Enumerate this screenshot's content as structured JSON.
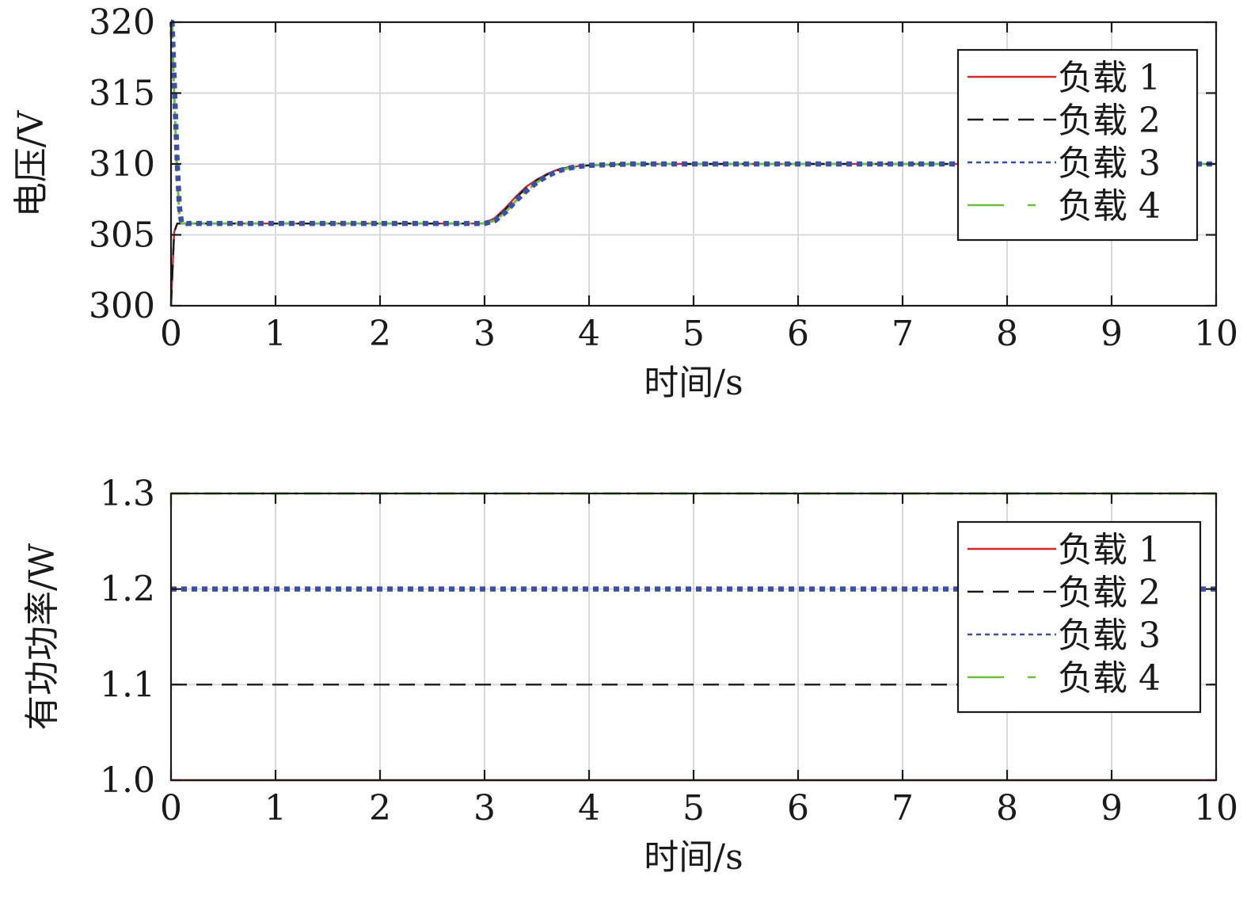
{
  "chart_data": [
    {
      "type": "line",
      "xlabel": "时间/s",
      "ylabel": "电压/V",
      "xlim": [
        0,
        10
      ],
      "ylim": [
        300,
        320
      ],
      "xticks": [
        "0",
        "1",
        "2",
        "3",
        "4",
        "5",
        "6",
        "7",
        "8",
        "9",
        "10"
      ],
      "yticks": [
        "300",
        "305",
        "310",
        "315",
        "320"
      ],
      "grid": true,
      "legend_position": "top-right",
      "series": [
        {
          "name": "负载 1",
          "color": "#d62728",
          "style": "solid",
          "x": [
            0,
            0.03,
            0.06,
            0.1,
            0.15,
            0.5,
            1,
            2,
            3,
            3.1,
            3.2,
            3.3,
            3.4,
            3.5,
            3.6,
            3.7,
            3.8,
            3.9,
            4,
            4.2,
            4.4,
            4.6,
            5,
            6,
            7,
            8,
            9,
            10
          ],
          "y": [
            300,
            305.2,
            305.8,
            305.8,
            305.8,
            305.8,
            305.8,
            305.8,
            305.8,
            306.2,
            306.9,
            307.7,
            308.4,
            308.9,
            309.3,
            309.6,
            309.75,
            309.85,
            309.9,
            309.95,
            310,
            310,
            310,
            310,
            310,
            310,
            310,
            310
          ]
        },
        {
          "name": "负载 2",
          "color": "#1a1a1a",
          "style": "dashed",
          "x": [
            0,
            0.03,
            0.06,
            0.1,
            0.15,
            0.5,
            1,
            2,
            3,
            3.1,
            3.2,
            3.3,
            3.4,
            3.5,
            3.6,
            3.7,
            3.8,
            3.9,
            4,
            4.2,
            4.4,
            4.6,
            5,
            6,
            7,
            8,
            9,
            10
          ],
          "y": [
            300,
            305.2,
            305.8,
            305.8,
            305.8,
            305.8,
            305.8,
            305.8,
            305.8,
            306.1,
            306.8,
            307.6,
            308.3,
            308.85,
            309.25,
            309.55,
            309.75,
            309.85,
            309.9,
            309.95,
            310,
            310,
            310,
            310,
            310,
            310,
            310,
            310
          ]
        },
        {
          "name": "负载 3",
          "color": "#3a4fa8",
          "style": "dotted",
          "x": [
            0,
            0.01,
            0.02,
            0.04,
            0.06,
            0.08,
            0.1,
            0.15,
            0.5,
            1,
            2,
            3,
            3.1,
            3.2,
            3.3,
            3.4,
            3.5,
            3.6,
            3.7,
            3.8,
            3.9,
            4,
            4.2,
            4.4,
            4.6,
            5,
            6,
            7,
            8,
            9,
            10
          ],
          "y": [
            320,
            320,
            318,
            314,
            310,
            307,
            305.9,
            305.8,
            305.8,
            305.8,
            305.8,
            305.8,
            306,
            306.6,
            307.4,
            308.1,
            308.7,
            309.15,
            309.5,
            309.7,
            309.82,
            309.9,
            309.95,
            310,
            310,
            310,
            310,
            310,
            310,
            310,
            310
          ]
        },
        {
          "name": "负载 4",
          "color": "#6bbf3a",
          "style": "dashdot",
          "x": [
            0,
            0.01,
            0.02,
            0.04,
            0.06,
            0.08,
            0.1,
            0.15,
            0.5,
            1,
            2,
            3,
            3.1,
            3.2,
            3.3,
            3.4,
            3.5,
            3.6,
            3.7,
            3.8,
            3.9,
            4,
            4.2,
            4.4,
            4.6,
            5,
            6,
            7,
            8,
            9,
            10
          ],
          "y": [
            320,
            320,
            317,
            313,
            309,
            306.5,
            305.8,
            305.8,
            305.8,
            305.8,
            305.8,
            305.8,
            306,
            306.6,
            307.4,
            308.1,
            308.7,
            309.15,
            309.5,
            309.7,
            309.82,
            309.9,
            309.95,
            310,
            310,
            310,
            310,
            310,
            310,
            310,
            310
          ]
        }
      ]
    },
    {
      "type": "line",
      "xlabel": "时间/s",
      "ylabel": "有功功率/W",
      "xlim": [
        0,
        10
      ],
      "ylim": [
        1.0,
        1.3
      ],
      "xticks": [
        "0",
        "1",
        "2",
        "3",
        "4",
        "5",
        "6",
        "7",
        "8",
        "9",
        "10"
      ],
      "yticks": [
        "1.0",
        "1.1",
        "1.2",
        "1.3"
      ],
      "grid": true,
      "legend_position": "top-right",
      "series": [
        {
          "name": "负载 1",
          "color": "#d62728",
          "style": "solid",
          "x": [
            0,
            10
          ],
          "y": [
            1.0,
            1.0
          ]
        },
        {
          "name": "负载 2",
          "color": "#1a1a1a",
          "style": "dashed",
          "x": [
            0,
            10
          ],
          "y": [
            1.1,
            1.1
          ]
        },
        {
          "name": "负载 3",
          "color": "#3a4fa8",
          "style": "dotted",
          "x": [
            0,
            10
          ],
          "y": [
            1.2,
            1.2
          ]
        },
        {
          "name": "负载 4",
          "color": "#6bbf3a",
          "style": "dashdot",
          "x": [
            0,
            10
          ],
          "y": [
            1.3,
            1.3
          ]
        }
      ]
    }
  ]
}
